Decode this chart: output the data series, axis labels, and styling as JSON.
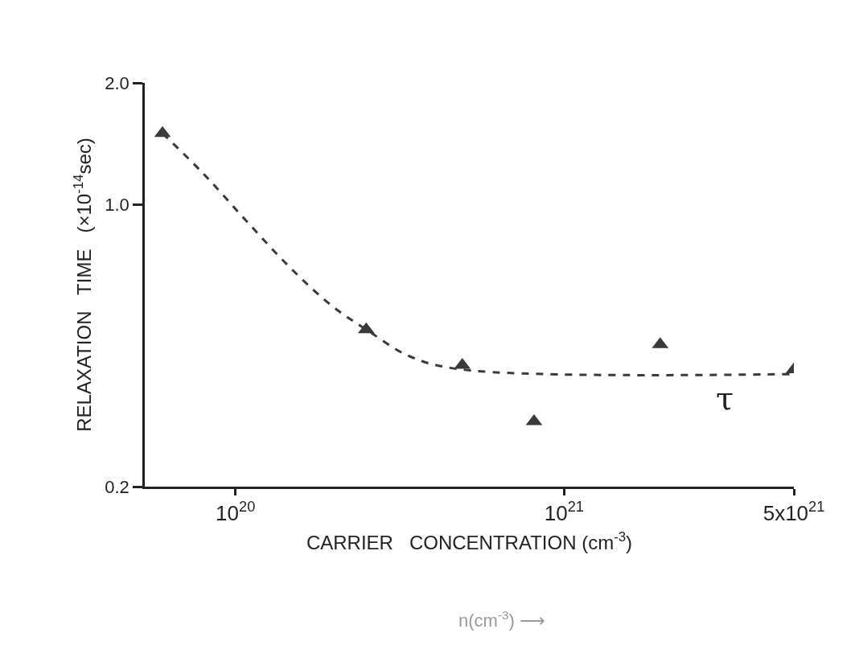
{
  "chart_data": {
    "type": "scatter",
    "xlabel": "CARRIER   CONCENTRATION (cm$^{-3}$)",
    "ylabel": "RELAXATION   TIME   (×10$^{-14}$sec)",
    "log": "xy",
    "xlim": [
      5.3e+19,
      5e+21
    ],
    "ylim": [
      0.2,
      2.0
    ],
    "xticks": [
      {
        "value": 1e+20,
        "label": "10$^{20}$"
      },
      {
        "value": 1e+21,
        "label": "10$^{21}$"
      },
      {
        "value": 5e+21,
        "label": "5x10$^{21}$"
      }
    ],
    "yticks": [
      0.2,
      {
        "value": 1.0,
        "label": "1.0"
      },
      {
        "value": 2.0,
        "label": "2.0"
      }
    ],
    "series": [
      {
        "color": "#3a3a3a",
        "marker": "triangle",
        "x": [
          6e+19,
          2.5e+20,
          4.9e+20,
          8.1e+20,
          1.96e+21,
          5e+21
        ],
        "values": [
          1.5,
          0.49,
          0.4,
          0.29,
          0.45,
          0.39
        ]
      },
      {
        "type": "line",
        "color": "#3a3a3a",
        "marker": "none",
        "line_style": "dashed",
        "x": [
          6e+19,
          8e+19,
          1.08e+20,
          1.46e+20,
          1.97e+20,
          2.5e+20,
          3.4e+20,
          4.9e+20,
          5e+21
        ],
        "values": [
          1.5,
          1.19,
          0.91,
          0.7,
          0.56,
          0.49,
          0.42,
          0.39,
          0.38
        ]
      }
    ],
    "annotations": [
      "τ",
      "n(cm$^{-3}$) ⟶"
    ]
  }
}
